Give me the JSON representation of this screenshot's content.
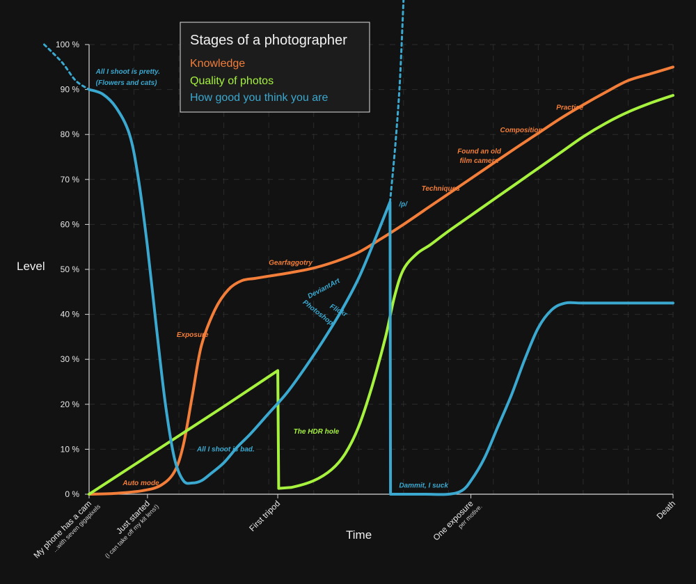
{
  "chart_data": {
    "type": "line",
    "title": "Stages of a photographer",
    "ylabel": "Level",
    "xlabel": "Time",
    "ylim": [
      0,
      100
    ],
    "xlim": [
      0,
      13
    ],
    "grid": true,
    "legend_position": "top-left",
    "y_ticks": [
      "0 %",
      "10 %",
      "20 %",
      "30 %",
      "40 %",
      "50 %",
      "60 %",
      "70 %",
      "80 %",
      "90 %",
      "100 %"
    ],
    "x_ticks": [
      {
        "x": 0,
        "label": "My phone has a cam",
        "sub": "...with seven gigapixels"
      },
      {
        "x": 1.3,
        "label": "Just started",
        "sub": "(I can take off my kit lens!)"
      },
      {
        "x": 4.2,
        "label": "First tripod",
        "sub": ""
      },
      {
        "x": 8.5,
        "label": "One exposure",
        "sub": "per motive."
      },
      {
        "x": 13,
        "label": "Death",
        "sub": ""
      }
    ],
    "series": [
      {
        "name": "Knowledge",
        "color": "#f27e3a",
        "x": [
          0,
          0.6,
          1.2,
          1.6,
          1.9,
          2.1,
          2.3,
          2.5,
          2.8,
          3.1,
          3.4,
          3.7,
          4.0,
          4.5,
          5.0,
          5.5,
          6.0,
          6.5,
          7.0,
          7.5,
          8.0,
          8.5,
          9.0,
          9.5,
          10.0,
          10.5,
          11.0,
          11.5,
          12.0,
          12.5,
          13.0
        ],
        "values": [
          0,
          0.2,
          0.8,
          2.0,
          5.0,
          11.0,
          22.0,
          33.0,
          41.0,
          45.5,
          47.5,
          48.0,
          48.5,
          49.3,
          50.3,
          51.8,
          53.8,
          56.8,
          60.0,
          63.4,
          66.8,
          70.2,
          73.6,
          77.0,
          80.3,
          83.6,
          86.6,
          89.4,
          92.0,
          93.5,
          95.0
        ]
      },
      {
        "name": "Quality of photos",
        "color": "#a6f23f",
        "x": [
          0,
          1.0,
          2.0,
          3.0,
          4.2,
          4.22,
          4.5,
          5.0,
          5.4,
          5.7,
          6.0,
          6.3,
          6.6,
          6.8,
          7.0,
          7.3,
          7.6,
          8.0,
          8.5,
          9.0,
          9.5,
          10.0,
          10.5,
          11.0,
          11.5,
          12.0,
          12.5,
          13.0
        ],
        "values": [
          0,
          6.5,
          13.0,
          19.5,
          27.5,
          1.3,
          1.5,
          3.0,
          5.5,
          9.0,
          15.0,
          24.0,
          35.0,
          44.0,
          50.0,
          53.5,
          55.5,
          58.5,
          62.0,
          65.5,
          69.0,
          72.5,
          76.0,
          79.5,
          82.5,
          85.0,
          87.0,
          88.7
        ]
      },
      {
        "name": "How good you think you are",
        "color": "#3ba8cf",
        "x": [
          0,
          0.3,
          0.6,
          0.9,
          1.1,
          1.3,
          1.5,
          1.7,
          1.9,
          2.1,
          2.3,
          2.5,
          2.7,
          3.0,
          3.3,
          3.6,
          4.0,
          4.4,
          4.8,
          5.2,
          5.6,
          6.0,
          6.4,
          6.7,
          6.71,
          7.0,
          7.5,
          8.0,
          8.3,
          8.5,
          8.8,
          9.1,
          9.4,
          9.7,
          10.0,
          10.3,
          10.6,
          11.0,
          12.0,
          13.0
        ],
        "values": [
          90,
          89,
          86,
          80,
          70,
          55,
          37,
          20,
          8,
          3.0,
          2.5,
          3.0,
          4.5,
          7.0,
          10.5,
          13.5,
          18.0,
          22.5,
          28.0,
          34.0,
          40.5,
          48.0,
          57.5,
          65.0,
          0,
          0,
          0,
          0,
          0.8,
          3.0,
          8.0,
          15.0,
          22.0,
          30.0,
          37.0,
          41.0,
          42.5,
          42.5,
          42.5,
          42.5
        ]
      }
    ],
    "extensions": [
      {
        "series": "How good you think you are",
        "x": [
          -1.0,
          -0.6,
          -0.3,
          0
        ],
        "values": [
          100,
          96,
          92,
          90
        ]
      },
      {
        "series": "How good you think you are",
        "x": [
          6.7,
          6.82,
          6.92,
          7.0
        ],
        "values": [
          65,
          78,
          92,
          110
        ]
      }
    ],
    "annotations": [
      {
        "text": "All I shoot is pretty.",
        "x": 0.15,
        "y": 93.5,
        "color": "#3ba8cf"
      },
      {
        "text": "(Flowers and cats)",
        "x": 0.15,
        "y": 91.0,
        "color": "#3ba8cf"
      },
      {
        "text": "Auto mode",
        "x": 0.75,
        "y": 2.0,
        "color": "#f27e3a"
      },
      {
        "text": "Exposure",
        "x": 1.95,
        "y": 35.0,
        "color": "#f27e3a"
      },
      {
        "text": "All I shoot is bad.",
        "x": 2.4,
        "y": 9.5,
        "color": "#3ba8cf"
      },
      {
        "text": "Gearfaggotry",
        "x": 4.0,
        "y": 51.0,
        "color": "#f27e3a"
      },
      {
        "text": "The HDR hole",
        "x": 4.55,
        "y": 13.5,
        "color": "#a6f23f"
      },
      {
        "text": "/p/",
        "x": 6.9,
        "y": 64.0,
        "color": "#3ba8cf"
      },
      {
        "text": "Dammit, I suck",
        "x": 6.9,
        "y": 1.5,
        "color": "#3ba8cf"
      },
      {
        "text": "Techniques",
        "x": 7.4,
        "y": 67.5,
        "color": "#f27e3a"
      },
      {
        "text": "Found an old",
        "x": 8.2,
        "y": 75.8,
        "color": "#f27e3a"
      },
      {
        "text": "film camera",
        "x": 8.25,
        "y": 73.7,
        "color": "#f27e3a"
      },
      {
        "text": "Composition",
        "x": 9.15,
        "y": 80.5,
        "color": "#f27e3a"
      },
      {
        "text": "Practice",
        "x": 10.4,
        "y": 85.5,
        "color": "#f27e3a"
      }
    ],
    "rotated_annotations": [
      {
        "text": "DeviantArt",
        "x": 4.9,
        "y": 43.5,
        "color": "#3ba8cf",
        "angle": -28
      },
      {
        "text": "Photoshop",
        "x": 4.75,
        "y": 42.5,
        "color": "#3ba8cf",
        "angle": 38
      },
      {
        "text": "Flickr",
        "x": 5.35,
        "y": 41.5,
        "color": "#3ba8cf",
        "angle": 30
      }
    ]
  }
}
